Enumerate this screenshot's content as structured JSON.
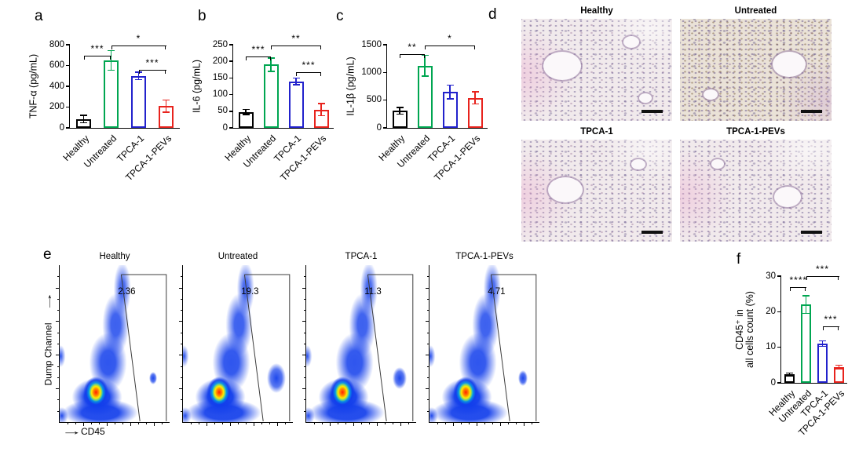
{
  "panel_labels": {
    "a": "a",
    "b": "b",
    "c": "c",
    "d": "d",
    "e": "e",
    "f": "f"
  },
  "groups": [
    "Healthy",
    "Untreated",
    "TPCA-1",
    "TPCA-1-PEVs"
  ],
  "group_colors": [
    "#000000",
    "#00a651",
    "#2222cc",
    "#e8231d"
  ],
  "chart_data": [
    {
      "id": "a",
      "type": "bar",
      "ylabel": "TNF-α (pg/mL)",
      "categories": [
        "Healthy",
        "Untreated",
        "TPCA-1",
        "TPCA-1-PEVs"
      ],
      "values": [
        85,
        650,
        500,
        210
      ],
      "errors": [
        35,
        95,
        35,
        60
      ],
      "ylim": [
        0,
        800
      ],
      "yticks": [
        0,
        200,
        400,
        600,
        800
      ],
      "bar_colors": [
        "#000000",
        "#00a651",
        "#2222cc",
        "#e8231d"
      ],
      "significance": [
        {
          "g1": 0,
          "g2": 1,
          "label": "***",
          "h": 0.87
        },
        {
          "g1": 1,
          "g2": 3,
          "label": "*",
          "h": 0.99
        },
        {
          "g1": 2,
          "g2": 3,
          "label": "***",
          "h": 0.7
        }
      ]
    },
    {
      "id": "b",
      "type": "bar",
      "ylabel": "IL-6 (pg/mL)",
      "categories": [
        "Healthy",
        "Untreated",
        "TPCA-1",
        "TPCA-1-PEVs"
      ],
      "values": [
        48,
        190,
        140,
        55
      ],
      "errors": [
        8,
        20,
        10,
        18
      ],
      "ylim": [
        0,
        250
      ],
      "yticks": [
        0,
        50,
        100,
        150,
        200,
        250
      ],
      "bar_colors": [
        "#000000",
        "#00a651",
        "#2222cc",
        "#e8231d"
      ],
      "significance": [
        {
          "g1": 0,
          "g2": 1,
          "label": "***",
          "h": 0.86
        },
        {
          "g1": 1,
          "g2": 3,
          "label": "**",
          "h": 0.99
        },
        {
          "g1": 2,
          "g2": 3,
          "label": "***",
          "h": 0.67
        }
      ]
    },
    {
      "id": "c",
      "type": "bar",
      "ylabel": "IL-1β (pg/mL)",
      "categories": [
        "Healthy",
        "Untreated",
        "TPCA-1",
        "TPCA-1-PEVs"
      ],
      "values": [
        310,
        1120,
        650,
        540
      ],
      "errors": [
        60,
        185,
        125,
        110
      ],
      "ylim": [
        0,
        1500
      ],
      "yticks": [
        0,
        500,
        1000,
        1500
      ],
      "bar_colors": [
        "#000000",
        "#00a651",
        "#2222cc",
        "#e8231d"
      ],
      "significance": [
        {
          "g1": 0,
          "g2": 1,
          "label": "**",
          "h": 0.89
        },
        {
          "g1": 1,
          "g2": 3,
          "label": "*",
          "h": 0.99
        }
      ]
    },
    {
      "id": "f",
      "type": "bar",
      "ylabel": "CD45⁺ in\nall cells count (%)",
      "categories": [
        "Healthy",
        "Untreated",
        "TPCA-1",
        "TPCA-1-PEVs"
      ],
      "values": [
        2.4,
        22,
        11,
        4.4
      ],
      "errors": [
        0.4,
        2.5,
        0.8,
        0.5
      ],
      "ylim": [
        0,
        30
      ],
      "yticks": [
        0,
        10,
        20,
        30
      ],
      "bar_colors": [
        "#000000",
        "#00a651",
        "#2222cc",
        "#e8231d"
      ],
      "significance": [
        {
          "g1": 0,
          "g2": 1,
          "label": "****",
          "h": 0.9
        },
        {
          "g1": 1,
          "g2": 3,
          "label": "***",
          "h": 1.0
        },
        {
          "g1": 2,
          "g2": 3,
          "label": "***",
          "h": 0.53
        }
      ]
    },
    {
      "id": "e",
      "type": "flow",
      "xlabel": "CD45",
      "ylabel": "Dump Channel",
      "plots": [
        {
          "title": "Healthy",
          "percent": "2.36"
        },
        {
          "title": "Untreated",
          "percent": "19.3"
        },
        {
          "title": "TPCA-1",
          "percent": "11.3"
        },
        {
          "title": "TPCA-1-PEVs",
          "percent": "4.71"
        }
      ]
    }
  ],
  "histology": {
    "plots": [
      {
        "title": "Healthy"
      },
      {
        "title": "Untreated"
      },
      {
        "title": "TPCA-1"
      },
      {
        "title": "TPCA-1-PEVs"
      }
    ]
  }
}
